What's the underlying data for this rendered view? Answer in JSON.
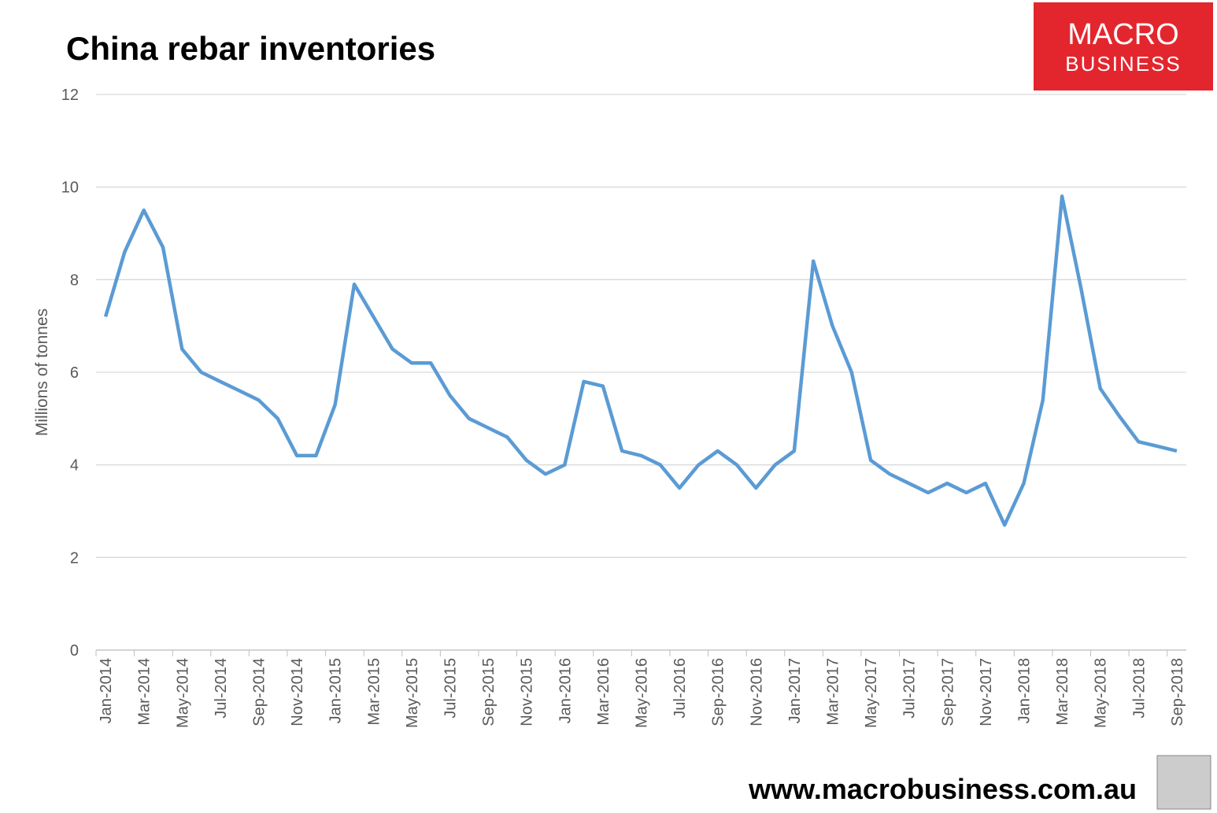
{
  "chart_data": {
    "type": "line",
    "title": "China rebar inventories",
    "y_label": "Millions of tonnes",
    "categories": [
      "Jan-2014",
      null,
      "Mar-2014",
      null,
      "May-2014",
      null,
      "Jul-2014",
      null,
      "Sep-2014",
      null,
      "Nov-2014",
      null,
      "Jan-2015",
      null,
      "Mar-2015",
      null,
      "May-2015",
      null,
      "Jul-2015",
      null,
      "Sep-2015",
      null,
      "Nov-2015",
      null,
      "Jan-2016",
      null,
      "Mar-2016",
      null,
      "May-2016",
      null,
      "Jul-2016",
      null,
      "Sep-2016",
      null,
      "Nov-2016",
      null,
      "Jan-2017",
      null,
      "Mar-2017",
      null,
      "May-2017",
      null,
      "Jul-2017",
      null,
      "Sep-2017",
      null,
      "Nov-2017",
      null,
      "Jan-2018",
      null,
      "Mar-2018",
      null,
      "May-2018",
      null,
      "Jul-2018",
      null,
      "Sep-2018"
    ],
    "values": [
      7.2,
      8.6,
      9.5,
      8.7,
      6.5,
      6.0,
      5.8,
      5.6,
      5.4,
      5.0,
      4.2,
      4.2,
      5.3,
      7.9,
      7.2,
      6.5,
      6.2,
      6.2,
      5.5,
      5.0,
      4.8,
      4.6,
      4.1,
      3.8,
      4.0,
      5.8,
      5.7,
      4.3,
      4.2,
      4.0,
      3.5,
      4.0,
      4.3,
      4.0,
      3.5,
      4.0,
      4.3,
      8.4,
      7.0,
      6.0,
      4.1,
      3.8,
      3.6,
      3.4,
      3.6,
      3.4,
      3.6,
      2.7,
      3.6,
      5.4,
      9.8,
      7.8,
      5.65,
      5.05,
      4.5,
      4.4,
      4.3
    ],
    "color": "#5b9bd5",
    "ylim": [
      0,
      12
    ],
    "yticks": [
      0,
      2,
      4,
      6,
      8,
      10,
      12
    ],
    "grid": true
  },
  "branding": {
    "logo_line1": "MACRO",
    "logo_line2": "BUSINESS",
    "url": "www.macrobusiness.com.au"
  }
}
